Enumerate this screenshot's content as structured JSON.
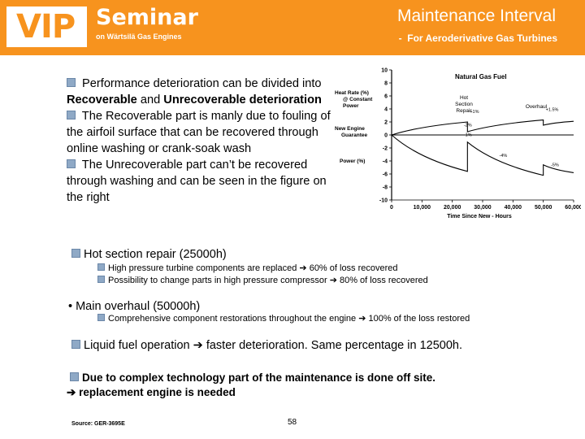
{
  "header": {
    "logo_text": "VIP",
    "seminar_title": "Seminar",
    "seminar_subtitle": "on Wärtsilä Gas Engines",
    "slide_title": "Maintenance Interval",
    "slide_subtitle": "-  For Aeroderivative Gas Turbines",
    "color": "#f7931e"
  },
  "intro": {
    "p1": " Performance deterioration can be divided into ",
    "p1_bold1": "Recoverable",
    "p1_mid": " and ",
    "p1_bold2": "Unrecoverable deterioration",
    "p2": " The Recoverable part is manly due to fouling of the airfoil surface that can be recovered through online washing or crank-soak wash",
    "p3": " The Unrecoverable part can’t be recovered through washing and can be seen in the figure on the right"
  },
  "chart_data": {
    "type": "line",
    "title": "Natural Gas Fuel",
    "xlabel": "Time Since New - Hours",
    "ylabel_heat": "Heat Rate (%) @ Constant Power",
    "ylabel_power": "Power (%)",
    "legend_new_engine": "New Engine Guarantee",
    "annotation_hot": "Hot Section Repair",
    "annotation_overhaul": "Overhaul",
    "x_ticks": [
      "0",
      "10,000",
      "20,000",
      "30,000",
      "40,000",
      "50,000",
      "60,000"
    ],
    "y_ticks": [
      "10",
      "8",
      "6",
      "4",
      "2",
      "0",
      "-2",
      "-4",
      "-6",
      "-8",
      "-10"
    ],
    "xlim": [
      0,
      60000
    ],
    "ylim": [
      -10,
      10
    ],
    "labels": {
      "hr_hot": "+1%",
      "pw_hot": "-1%",
      "hr_hot_low": "-2%",
      "pw_hot_low": "-4%",
      "hr_ovh": "+1.5%",
      "pw_ovh": "-5%"
    },
    "series": [
      {
        "name": "Heat Rate",
        "points": [
          [
            0,
            0
          ],
          [
            25000,
            2
          ],
          [
            25000,
            0.5
          ],
          [
            50000,
            2.3
          ],
          [
            50000,
            1.5
          ],
          [
            60000,
            2.1
          ]
        ]
      },
      {
        "name": "Power",
        "points": [
          [
            0,
            0
          ],
          [
            25000,
            -5.6
          ],
          [
            25000,
            -1.1
          ],
          [
            50000,
            -6.2
          ],
          [
            50000,
            -4.6
          ],
          [
            60000,
            -5.8
          ]
        ]
      }
    ]
  },
  "hot_section": {
    "label": "Hot section repair (25000h)",
    "item1_a": "High pressure turbine components are replaced ",
    "item1_b": " 60% of loss recovered",
    "item2_a": "Possibility to change parts in high pressure compressor ",
    "item2_b": " 80% of loss recovered"
  },
  "overhaul": {
    "label": "• Main overhaul (50000h)",
    "item1_a": "Comprehensive component restorations throughout the engine ",
    "item1_b": " 100% of the loss restored"
  },
  "liquid": {
    "a": "Liquid fuel operation ",
    "b": " faster deterioration. Same percentage in 12500h."
  },
  "offsite": {
    "line1": "Due to complex technology part of the maintenance is done off site.",
    "line2": " replacement engine is needed"
  },
  "arrow": "➔",
  "footer": {
    "source": "Source: GER-3695E",
    "page": "58"
  }
}
